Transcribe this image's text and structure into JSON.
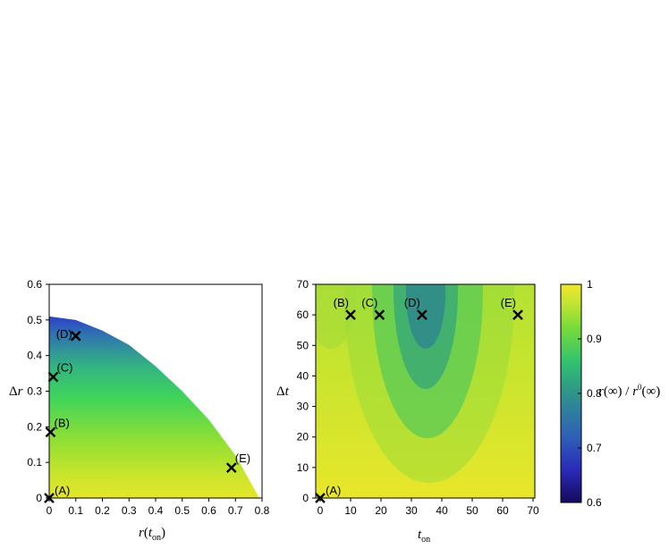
{
  "chart_data": [
    {
      "type": "heatmap",
      "xlabel": "r(t_on)",
      "ylabel": "Δr",
      "xlim": [
        0,
        0.8
      ],
      "ylim": [
        0,
        0.6
      ],
      "xticks": [
        "0",
        "0.1",
        "0.2",
        "0.3",
        "0.4",
        "0.5",
        "0.6",
        "0.7",
        "0.8"
      ],
      "yticks": [
        "0",
        "0.1",
        "0.2",
        "0.3",
        "0.4",
        "0.5",
        "0.6"
      ],
      "region_boundary": {
        "x": [
          0,
          0.1,
          0.2,
          0.3,
          0.4,
          0.5,
          0.6,
          0.7,
          0.79
        ],
        "y": [
          0.51,
          0.5,
          0.47,
          0.43,
          0.37,
          0.3,
          0.22,
          0.12,
          0.0
        ]
      },
      "markers": [
        {
          "label": "(A)",
          "x": 0.0,
          "y": 0.0
        },
        {
          "label": "(B)",
          "x": 0.005,
          "y": 0.185
        },
        {
          "label": "(C)",
          "x": 0.015,
          "y": 0.34
        },
        {
          "label": "(D)",
          "x": 0.1,
          "y": 0.455
        },
        {
          "label": "(E)",
          "x": 0.685,
          "y": 0.085
        }
      ]
    },
    {
      "type": "heatmap",
      "xlabel": "t_on",
      "ylabel": "Δt",
      "xlim": [
        0,
        70
      ],
      "ylim": [
        0,
        70
      ],
      "xticks": [
        "0",
        "10",
        "20",
        "30",
        "40",
        "50",
        "60",
        "70"
      ],
      "yticks": [
        "0",
        "10",
        "20",
        "30",
        "40",
        "50",
        "60",
        "70"
      ],
      "markers": [
        {
          "label": "(A)",
          "x": 0,
          "y": 0
        },
        {
          "label": "(B)",
          "x": 10,
          "y": 60
        },
        {
          "label": "(C)",
          "x": 19.5,
          "y": 60
        },
        {
          "label": "(D)",
          "x": 33.5,
          "y": 60
        },
        {
          "label": "(E)",
          "x": 65,
          "y": 60
        }
      ]
    }
  ],
  "colorbar": {
    "label": "r(∞) / r⁰(∞)",
    "range": [
      0.6,
      1
    ],
    "ticks": [
      "0.6",
      "0.7",
      "0.8",
      "0.9",
      "1"
    ],
    "colors": [
      "#140a5a",
      "#3c3cd6",
      "#2e8f8e",
      "#32c46e",
      "#78db3a",
      "#cfe535",
      "#f0e62a"
    ]
  }
}
